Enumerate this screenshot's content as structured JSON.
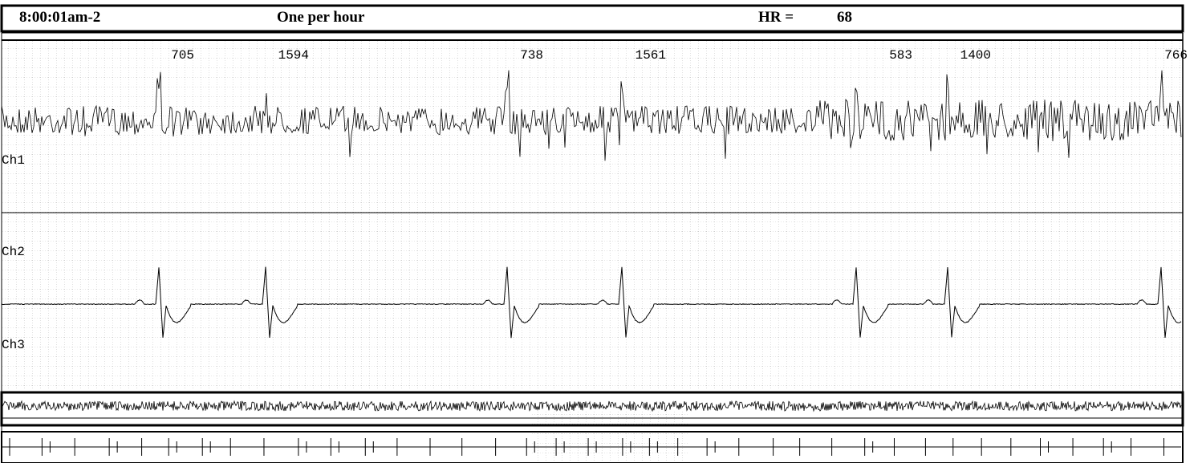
{
  "header": {
    "time": "8:00:01am-2",
    "mode": "One per hour",
    "hr_label": "HR =",
    "hr_value": 68
  },
  "intervals": [
    705,
    1594,
    738,
    1561,
    583,
    1400,
    766
  ],
  "channels": [
    "Ch1",
    "Ch2",
    "Ch3"
  ]
}
